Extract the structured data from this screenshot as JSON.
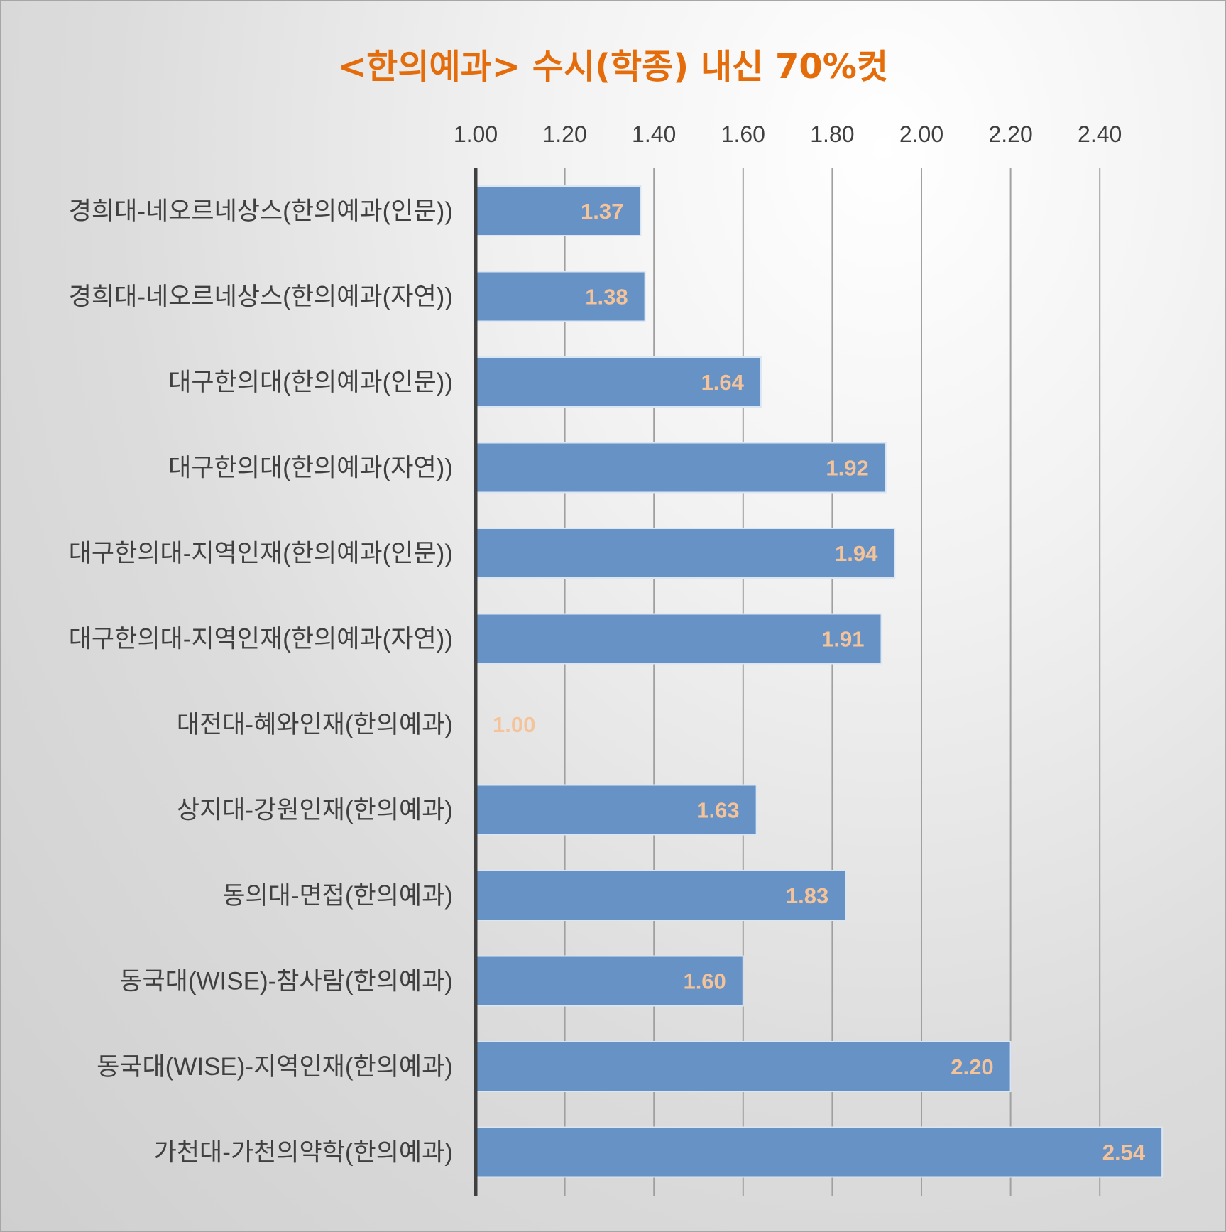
{
  "chart_data": {
    "type": "bar",
    "orientation": "horizontal",
    "title": "<한의예과> 수시(학종) 내신 70%컷",
    "xlabel": "",
    "ylabel": "",
    "xlim": [
      1.0,
      2.54
    ],
    "x_ticks": [
      "1.00",
      "1.20",
      "1.40",
      "1.60",
      "1.80",
      "2.00",
      "2.20",
      "2.40"
    ],
    "grid": true,
    "legend": "none",
    "categories": [
      "경희대-네오르네상스(한의예과(인문))",
      "경희대-네오르네상스(한의예과(자연))",
      "대구한의대(한의예과(인문))",
      "대구한의대(한의예과(자연))",
      "대구한의대-지역인재(한의예과(인문))",
      "대구한의대-지역인재(한의예과(자연))",
      "대전대-혜와인재(한의예과)",
      "상지대-강원인재(한의예과)",
      "동의대-면접(한의예과)",
      "동국대(WISE)-참사람(한의예과)",
      "동국대(WISE)-지역인재(한의예과)",
      "가천대-가천의약학(한의예과)"
    ],
    "values": [
      1.37,
      1.38,
      1.64,
      1.92,
      1.94,
      1.91,
      1.0,
      1.63,
      1.83,
      1.6,
      2.2,
      2.54
    ],
    "data_labels": [
      "1.37",
      "1.38",
      "1.64",
      "1.92",
      "1.94",
      "1.91",
      "1.00",
      "1.63",
      "1.83",
      "1.60",
      "2.20",
      "2.54"
    ],
    "colors": {
      "bar": "#6792c5",
      "bar_edge": "#dbe6f3",
      "data_label": "#f5c39a",
      "title": "#e46c0a",
      "axis_line": "#404040",
      "grid": "#a0a0a0",
      "text": "#404040"
    }
  }
}
